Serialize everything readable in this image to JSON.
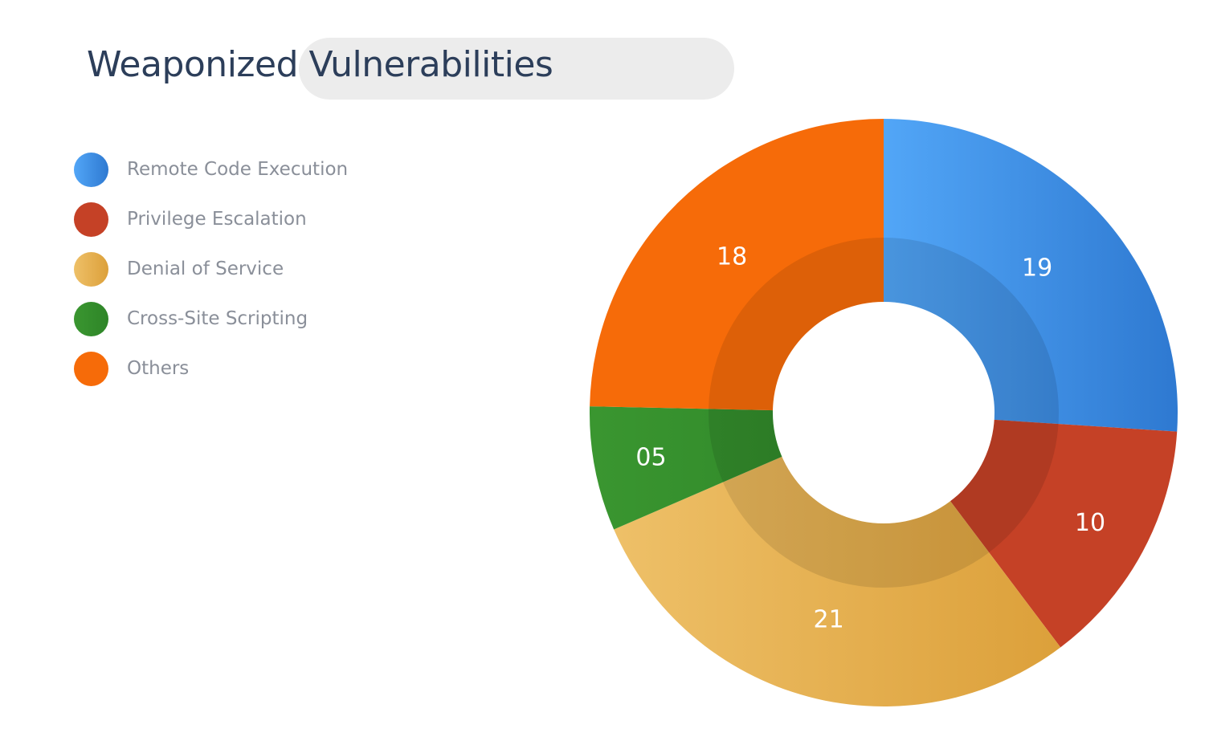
{
  "chart_data": {
    "type": "pie",
    "variant": "donut",
    "title": "Weaponized Vulnerabilities",
    "legend_position": "top-left",
    "categories": [
      "Remote Code Execution",
      "Privilege Escalation",
      "Denial of Service",
      "Cross-Site Scripting",
      "Others"
    ],
    "values": [
      19,
      10,
      21,
      5,
      18
    ],
    "data_labels": [
      "19",
      "10",
      "21",
      "05",
      "18"
    ],
    "colors": [
      "#3c8fe2",
      "#c54126",
      "#e6b252",
      "#33902c",
      "#f56a0a"
    ],
    "gradient_light": [
      "#52a6f7",
      "#c54126",
      "#eec068",
      "#3a9630",
      "#f66b09"
    ],
    "gradient_dark": [
      "#2e79d1",
      "#c54126",
      "#dca03a",
      "#2e8528",
      "#f66b09"
    ]
  }
}
